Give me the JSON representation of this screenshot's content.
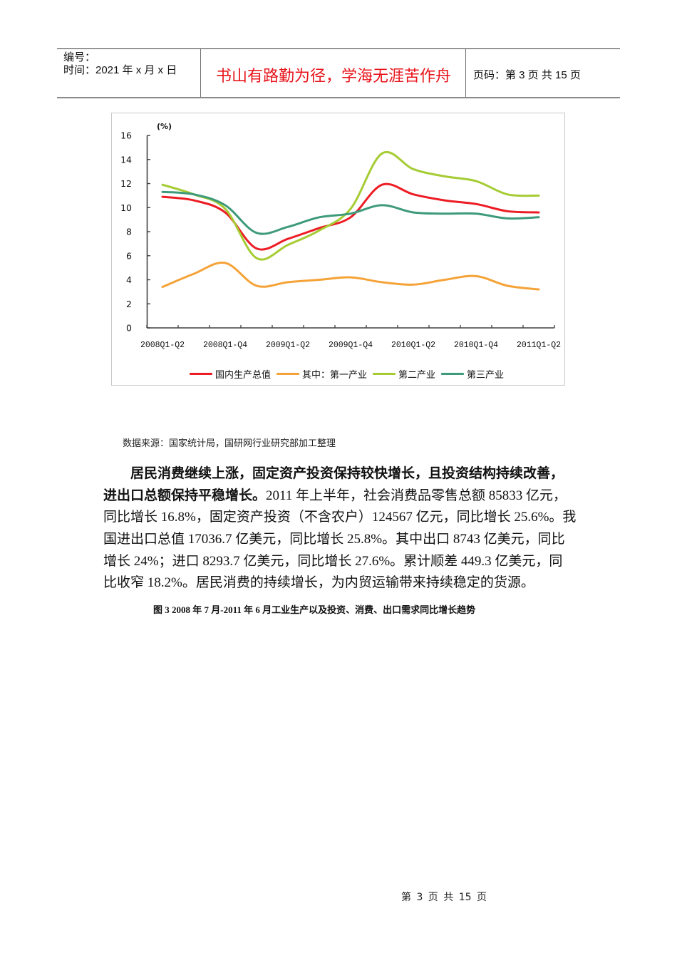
{
  "header": {
    "serial_label": "编号：",
    "time_label": "时间：2021 年 x 月 x 日",
    "motto": "书山有路勤为径，学海无涯苦作舟",
    "page_info": "页码：第 3 页  共 15 页",
    "motto_color": "#e8141b"
  },
  "chart_data": {
    "type": "line",
    "title": "",
    "xlabel": "",
    "ylabel": "(%)",
    "ylim": [
      0,
      16
    ],
    "yticks": [
      0,
      2,
      4,
      6,
      8,
      10,
      12,
      14,
      16
    ],
    "categories": [
      "2008Q1-Q2",
      "",
      "2008Q1-Q4",
      "",
      "2009Q1-Q2",
      "",
      "2009Q1-Q4",
      "",
      "2010Q1-Q2",
      "",
      "2010Q1-Q4",
      "",
      "2011Q1-Q2"
    ],
    "series": [
      {
        "name": "国内生产总值",
        "color": "#ed1c24",
        "values": [
          10.9,
          10.6,
          9.6,
          6.6,
          7.4,
          8.3,
          9.2,
          11.9,
          11.1,
          10.6,
          10.3,
          9.7,
          9.6
        ]
      },
      {
        "name": "其中：第一产业",
        "color": "#f5a338",
        "values": [
          3.4,
          4.5,
          5.4,
          3.5,
          3.8,
          4.0,
          4.2,
          3.8,
          3.6,
          4.0,
          4.3,
          3.5,
          3.2
        ]
      },
      {
        "name": "第二产业",
        "color": "#a6cc34",
        "values": [
          11.9,
          11.1,
          9.9,
          5.8,
          6.9,
          8.1,
          9.9,
          14.5,
          13.2,
          12.6,
          12.2,
          11.1,
          11.0
        ]
      },
      {
        "name": "第三产业",
        "color": "#3d9a7a",
        "values": [
          11.3,
          11.1,
          10.2,
          7.9,
          8.4,
          9.2,
          9.5,
          10.2,
          9.6,
          9.5,
          9.5,
          9.1,
          9.2
        ]
      }
    ],
    "grid": false,
    "legend_position": "bottom",
    "smoothed": true
  },
  "source_note": "数据来源：国家统计局，国研网行业研究部加工整理",
  "paragraph": {
    "lines": [
      {
        "bold": "居民消费继续上涨，固定资产投资保持较快增长，且投资结构持续改善，",
        "normal": ""
      },
      {
        "bold": "进出口总额保持平稳增长。",
        "normal": "2011 年上半年，社会消费品零售总额 85833 亿元，"
      },
      {
        "bold": "",
        "normal": "同比增长 16.8%，固定资产投资（不含农户）124567 亿元，同比增长 25.6%。我"
      },
      {
        "bold": "",
        "normal": "国进出口总值 17036.7 亿美元，同比增长 25.8%。其中出口 8743 亿美元，同比"
      },
      {
        "bold": "",
        "normal": "增长 24%；进口 8293.7 亿美元，同比增长 27.6%。累计顺差 449.3 亿美元，同"
      },
      {
        "bold": "",
        "normal": "比收窄 18.2%。居民消费的持续增长，为内贸运输带来持续稳定的货源。"
      }
    ]
  },
  "figure_caption": "图 3   2008 年 7 月-2011 年 6 月工业生产以及投资、消费、出口需求同比增长趋势",
  "footer": {
    "page_number": "第 3 页 共 15 页"
  }
}
